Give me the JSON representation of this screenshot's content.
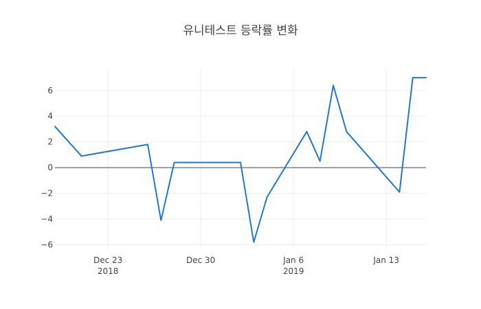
{
  "chart_data": {
    "type": "line",
    "title": "유니테스트 등락률 변화",
    "xlabel": "",
    "ylabel": "",
    "x_range": [
      "2018-12-19",
      "2019-01-16"
    ],
    "ylim": [
      -6.3,
      7.7
    ],
    "grid": true,
    "zero_line": true,
    "legend": "none",
    "line_color": "#1f77d4",
    "x_ticks": [
      {
        "date": "2018-12-23",
        "label": "Dec 23",
        "sublabel": "2018"
      },
      {
        "date": "2018-12-30",
        "label": "Dec 30",
        "sublabel": ""
      },
      {
        "date": "2019-01-06",
        "label": "Jan 6",
        "sublabel": "2019"
      },
      {
        "date": "2019-01-13",
        "label": "Jan 13",
        "sublabel": ""
      }
    ],
    "y_ticks": [
      {
        "value": -6,
        "label": "−6"
      },
      {
        "value": -4,
        "label": "−4"
      },
      {
        "value": -2,
        "label": "−2"
      },
      {
        "value": 0,
        "label": "0"
      },
      {
        "value": 2,
        "label": "2"
      },
      {
        "value": 4,
        "label": "4"
      },
      {
        "value": 6,
        "label": "6"
      }
    ],
    "series": [
      {
        "x": [
          "2018-12-19",
          "2018-12-21",
          "2018-12-26",
          "2018-12-27",
          "2018-12-28",
          "2019-01-02",
          "2019-01-03",
          "2019-01-04",
          "2019-01-07",
          "2019-01-08",
          "2019-01-09",
          "2019-01-10",
          "2019-01-14",
          "2019-01-15",
          "2019-01-16"
        ],
        "values": [
          3.2,
          0.9,
          1.8,
          -4.1,
          0.4,
          0.4,
          -5.8,
          -2.3,
          2.8,
          0.5,
          6.4,
          2.8,
          -1.9,
          7.0,
          7.0
        ]
      }
    ]
  }
}
